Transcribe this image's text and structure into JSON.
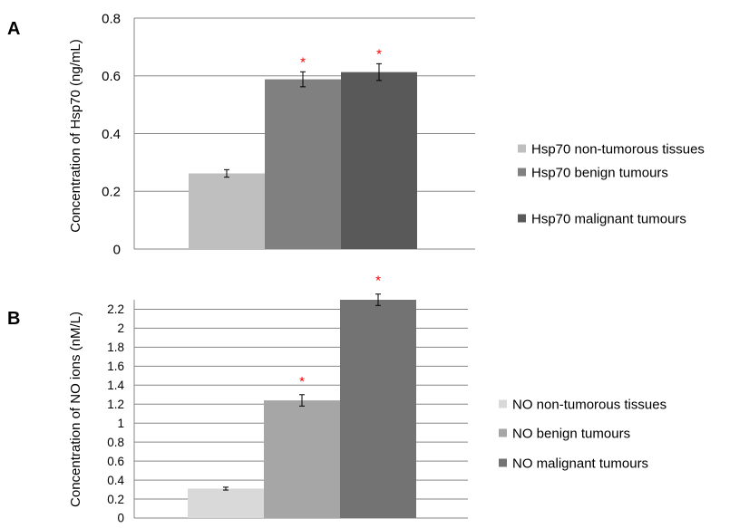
{
  "chart_data": [
    {
      "panel_label": "A",
      "type": "bar",
      "ylabel": "Concentration of Hsp70 (ng/mL)",
      "ylim": [
        0,
        0.8
      ],
      "yticks": [
        0,
        0.2,
        0.4,
        0.6,
        0.8
      ],
      "ytick_labels": [
        "0",
        "0.2",
        "0.4",
        "0.6",
        "0.8"
      ],
      "grid": true,
      "legend_position": "right",
      "significance_marker": "*",
      "series": [
        {
          "name": "Hsp70 non-tumorous tissues",
          "value": 0.262,
          "error": 0.013,
          "color": "#bfbfbf",
          "significant": false
        },
        {
          "name": "Hsp70 benign tumours",
          "value": 0.588,
          "error": 0.026,
          "color": "#808080",
          "significant": true
        },
        {
          "name": "Hsp70 malignant tumours",
          "value": 0.613,
          "error": 0.029,
          "color": "#595959",
          "significant": true
        }
      ]
    },
    {
      "panel_label": "B",
      "type": "bar",
      "ylabel": "Concentration of NO ions (nM/L)",
      "ylim": [
        0,
        2.3
      ],
      "yticks": [
        0,
        0.2,
        0.4,
        0.6,
        0.8,
        1,
        1.2,
        1.4,
        1.6,
        1.8,
        2,
        2.2
      ],
      "ytick_labels": [
        "0",
        "0.2",
        "0.4",
        "0.6",
        "0.8",
        "1",
        "1.2",
        "1.4",
        "1.6",
        "1.8",
        "2",
        "2.2"
      ],
      "grid": true,
      "legend_position": "right",
      "significance_marker": "*",
      "series": [
        {
          "name": "NO non-tumorous tissues",
          "value": 0.31,
          "error": 0.015,
          "color": "#d9d9d9",
          "significant": false
        },
        {
          "name": "NO benign tumours",
          "value": 1.24,
          "error": 0.06,
          "color": "#a6a6a6",
          "significant": true
        },
        {
          "name": "NO malignant tumours",
          "value": 2.3,
          "error": 0.06,
          "color": "#737373",
          "significant": true
        }
      ]
    }
  ]
}
